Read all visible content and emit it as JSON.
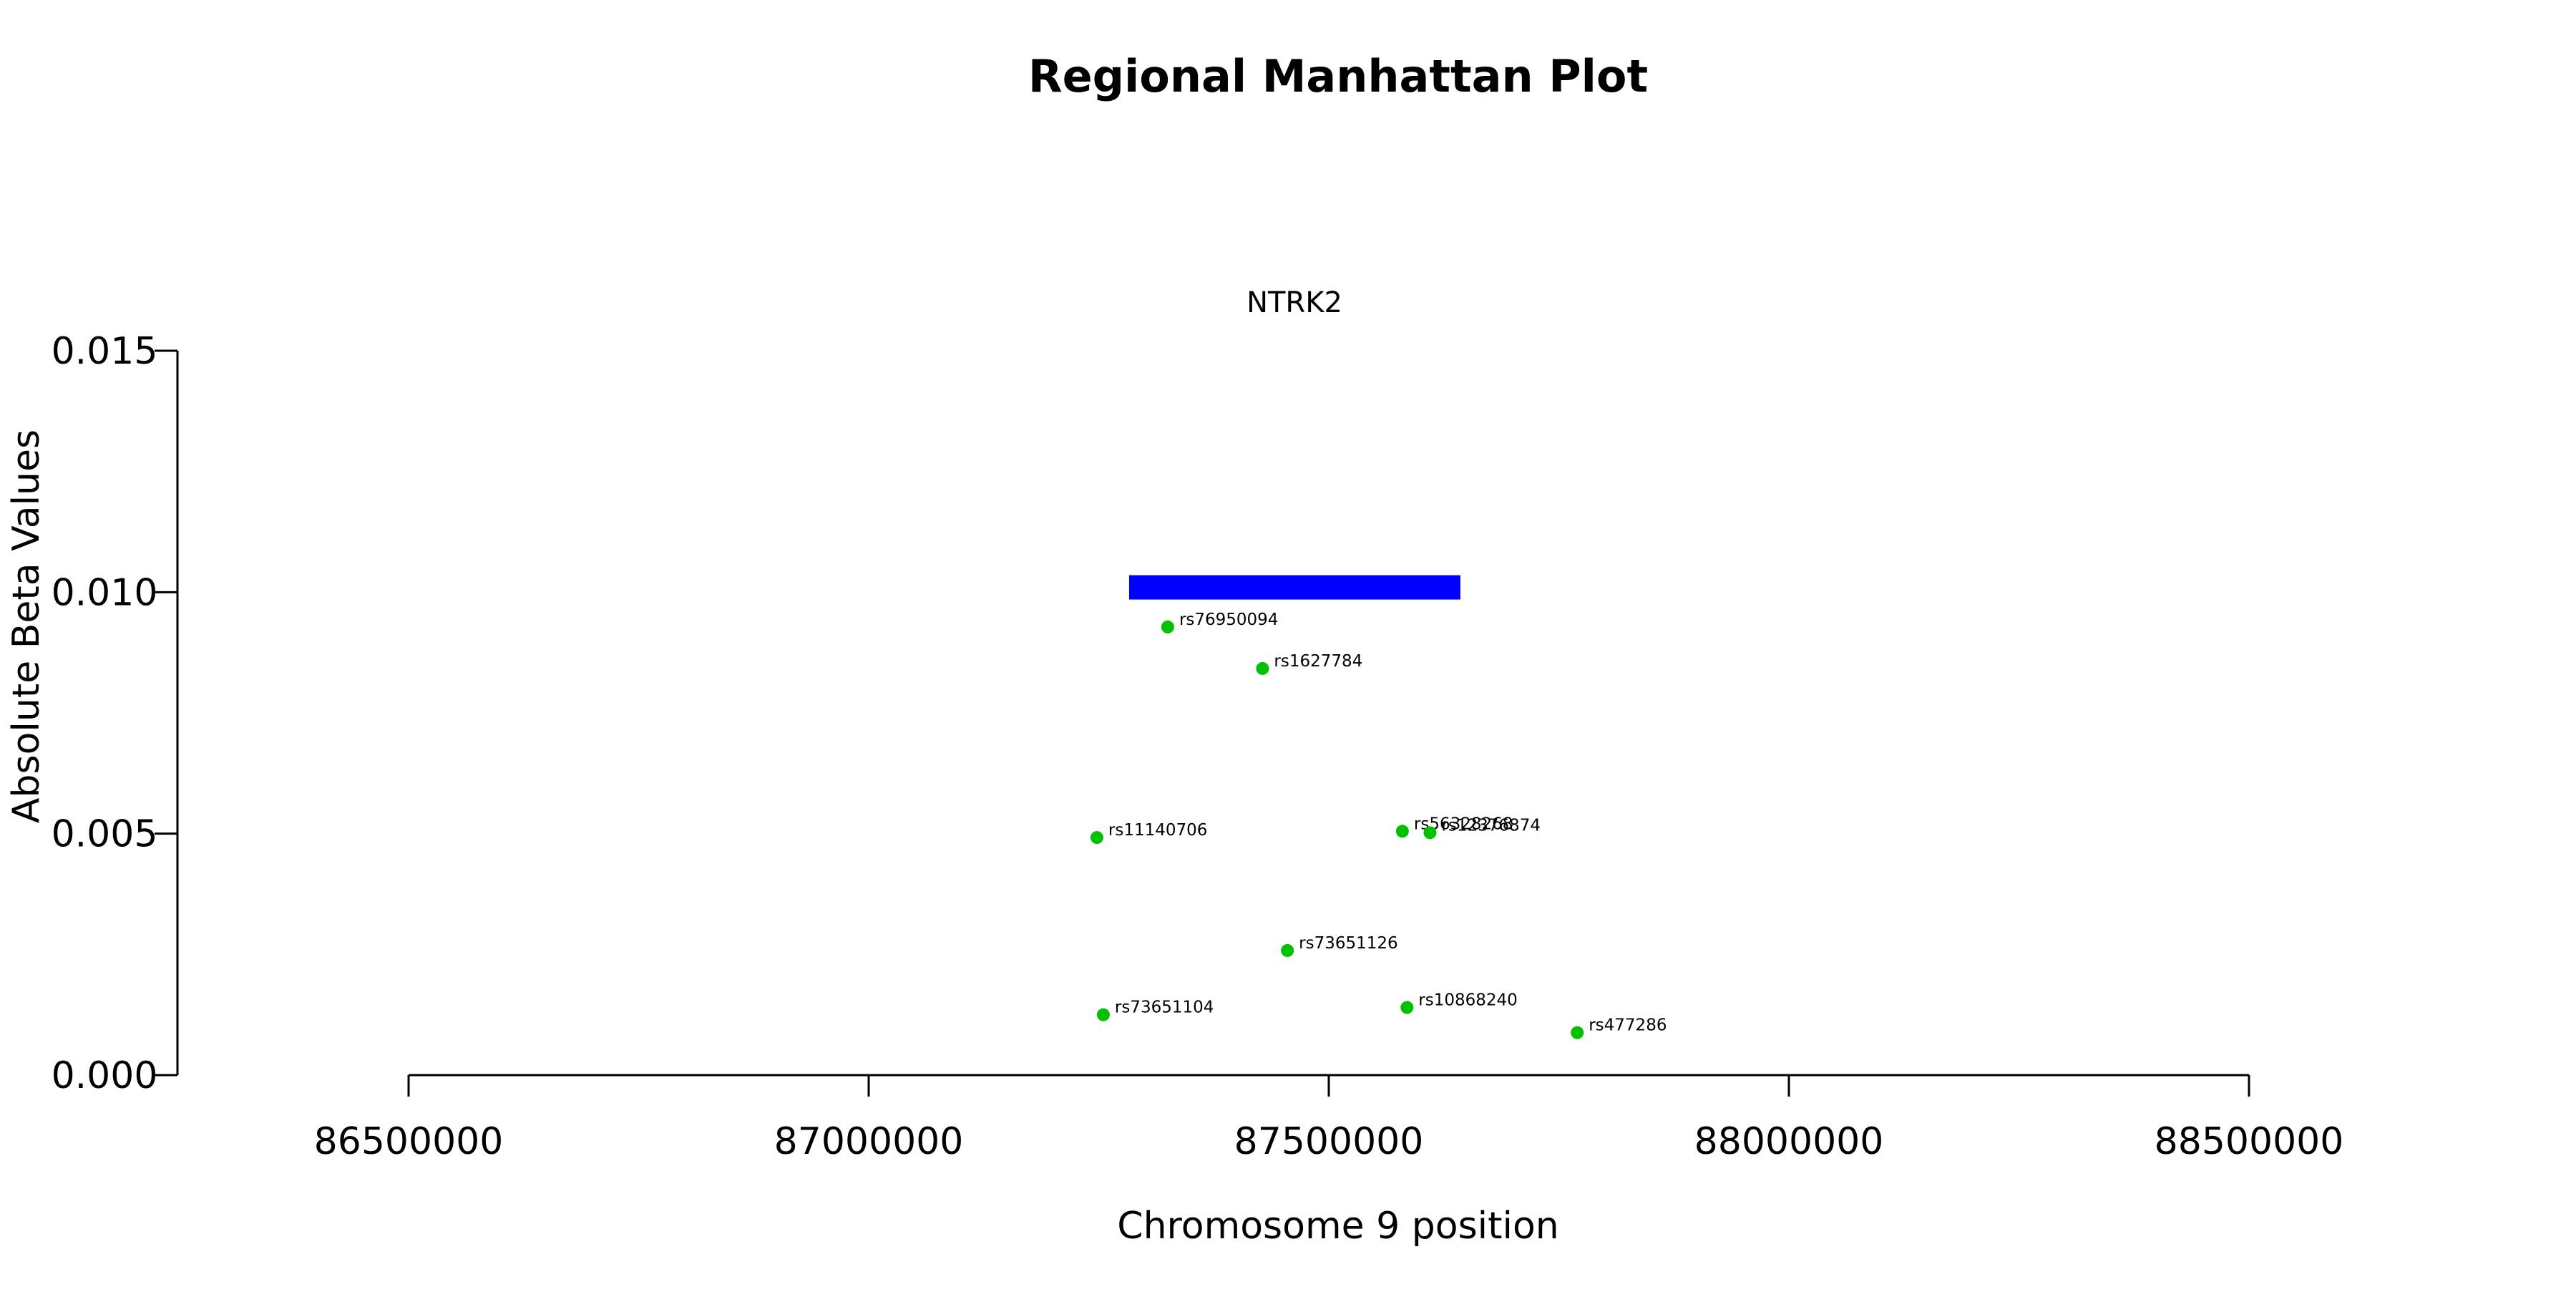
{
  "chart_data": {
    "type": "scatter",
    "title": "Regional Manhattan Plot",
    "xlabel": "Chromosome 9 position",
    "ylabel": "Absolute Beta Values",
    "xlim": [
      86500000,
      88500000
    ],
    "ylim": [
      0,
      0.015
    ],
    "x_ticks": [
      86500000,
      87000000,
      87500000,
      88000000,
      88500000
    ],
    "x_tick_labels": [
      "86500000",
      "87000000",
      "87500000",
      "88000000",
      "88500000"
    ],
    "y_ticks": [
      0,
      0.005,
      0.01,
      0.015
    ],
    "y_tick_labels": [
      "0.000",
      "0.005",
      "0.010",
      "0.015"
    ],
    "grid": false,
    "point_color": "#00c000",
    "gene": {
      "name": "NTRK2",
      "start": 87283000,
      "end": 87643000,
      "y": 0.0101,
      "color": "#0000ff"
    },
    "points": [
      {
        "label": "rs76950094",
        "x": 87325000,
        "y": 0.00928
      },
      {
        "label": "rs1627784",
        "x": 87428000,
        "y": 0.00842
      },
      {
        "label": "rs11140706",
        "x": 87248000,
        "y": 0.00492
      },
      {
        "label": "rs56328268",
        "x": 87580000,
        "y": 0.00505
      },
      {
        "label": "rs12376874",
        "x": 87610000,
        "y": 0.00502
      },
      {
        "label": "rs73651126",
        "x": 87455000,
        "y": 0.00258
      },
      {
        "label": "rs73651104",
        "x": 87255000,
        "y": 0.00125
      },
      {
        "label": "rs10868240",
        "x": 87585000,
        "y": 0.0014
      },
      {
        "label": "rs477286",
        "x": 87770000,
        "y": 0.00088
      }
    ]
  }
}
